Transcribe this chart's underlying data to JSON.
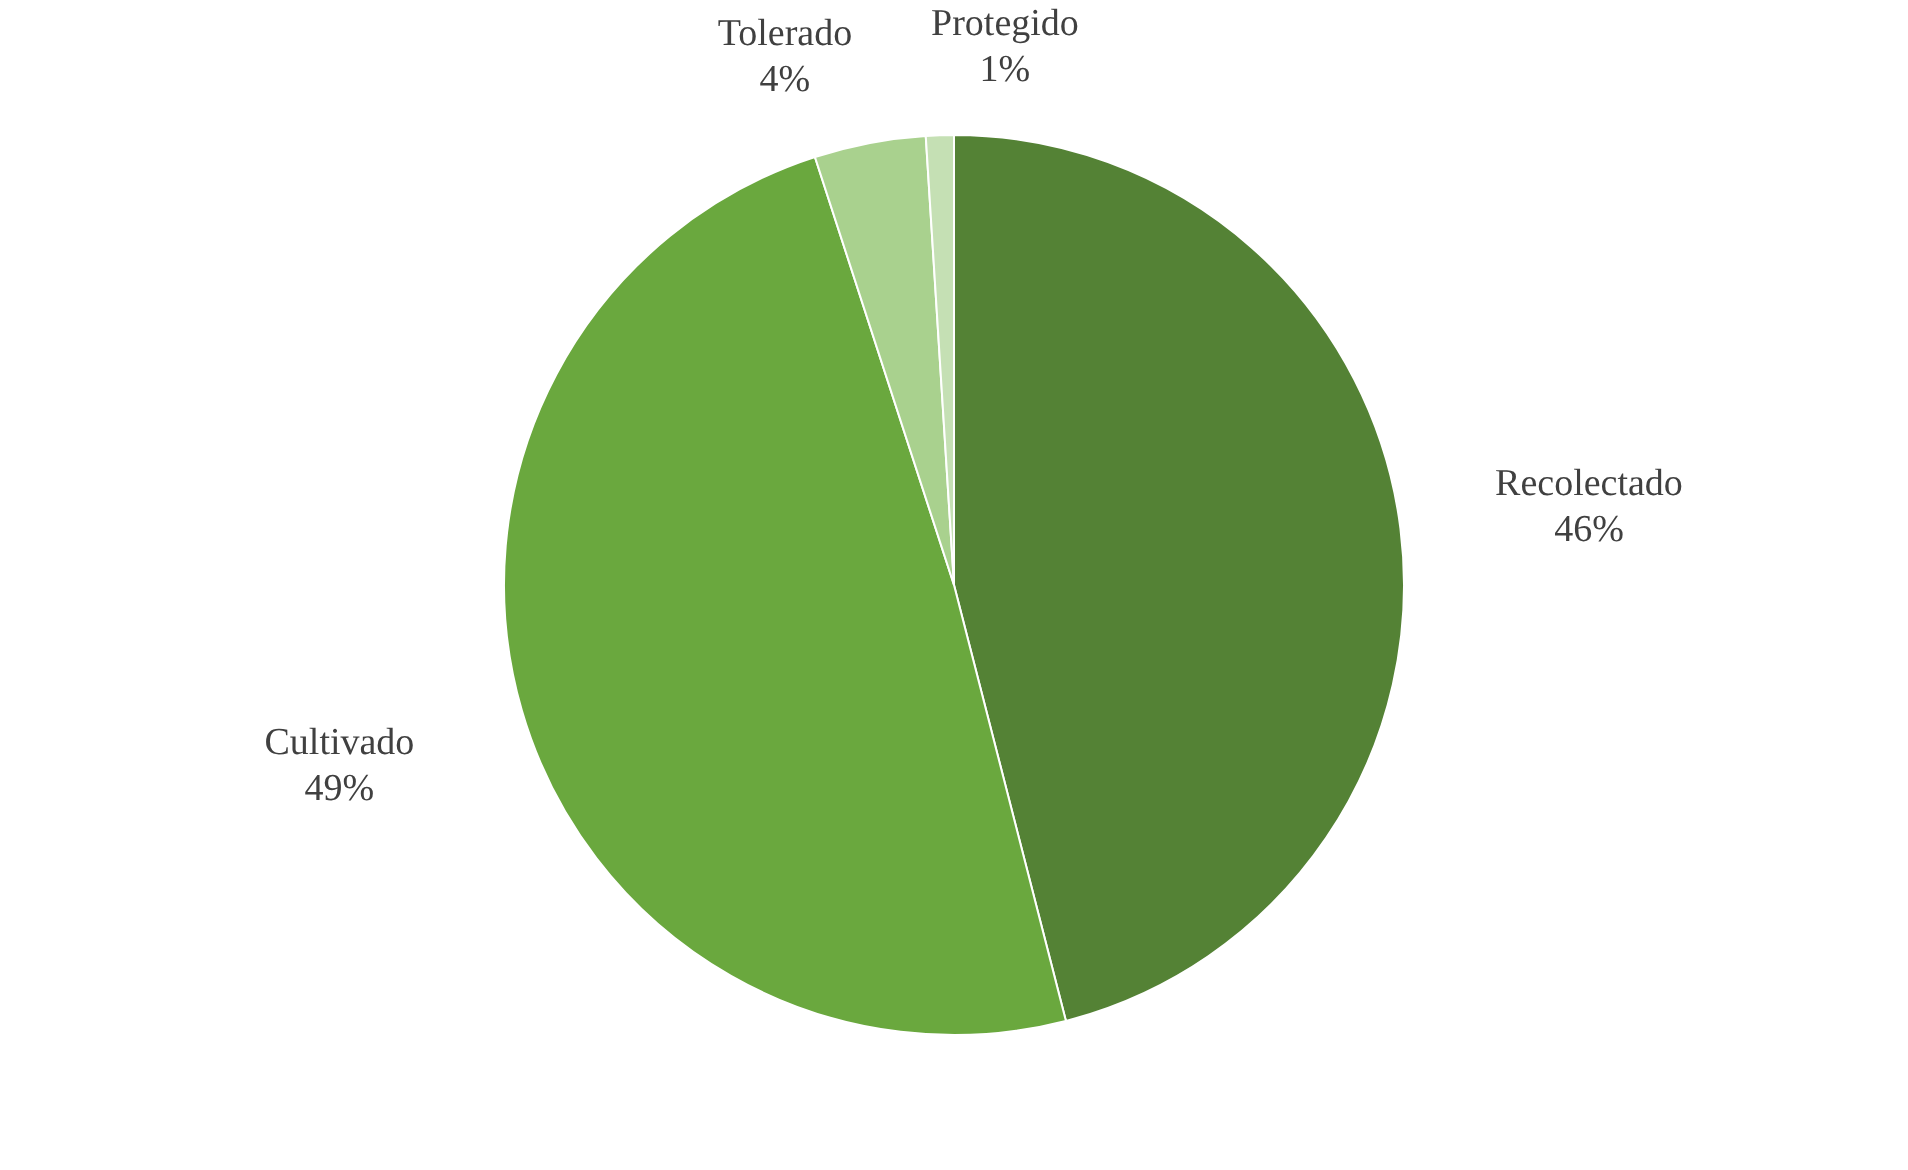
{
  "chart_data": {
    "type": "pie",
    "categories": [
      "Recolectado",
      "Cultivado",
      "Tolerado",
      "Protegido"
    ],
    "values": [
      46,
      49,
      4,
      1
    ],
    "value_labels": [
      "46%",
      "49%",
      "4%",
      "1%"
    ],
    "colors": [
      "#548235",
      "#6aa83e",
      "#a9d18e",
      "#c5e0b4"
    ]
  }
}
